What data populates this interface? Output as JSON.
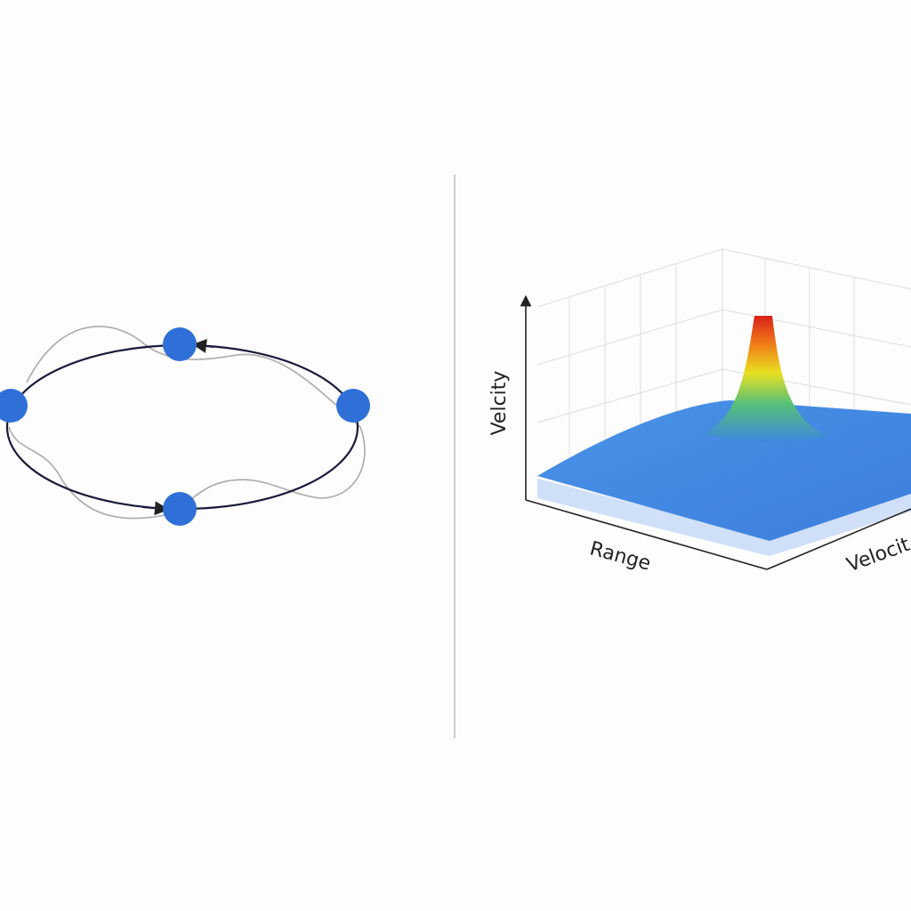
{
  "surface_plot": {
    "axis_labels": {
      "vertical": "Velcity",
      "front": "Range",
      "side": "Velocit"
    }
  }
}
